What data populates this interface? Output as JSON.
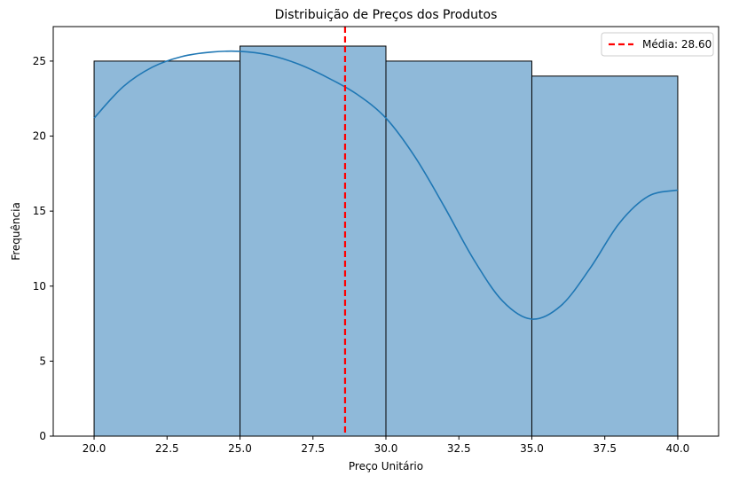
{
  "chart_data": {
    "type": "bar",
    "title": "Distribuição de Preços dos Produtos",
    "xlabel": "Preço Unitário",
    "ylabel": "Frequência",
    "xlim": [
      18.6,
      41.4
    ],
    "ylim": [
      0,
      27.3
    ],
    "x_ticks": [
      20.0,
      22.5,
      25.0,
      27.5,
      30.0,
      32.5,
      35.0,
      37.5,
      40.0
    ],
    "x_tick_labels": [
      "20.0",
      "22.5",
      "25.0",
      "27.5",
      "30.0",
      "32.5",
      "35.0",
      "37.5",
      "40.0"
    ],
    "y_ticks": [
      0,
      5,
      10,
      15,
      20,
      25
    ],
    "y_tick_labels": [
      "0",
      "5",
      "10",
      "15",
      "20",
      "25"
    ],
    "bins": [
      {
        "start": 20,
        "end": 25,
        "count": 25
      },
      {
        "start": 25,
        "end": 30,
        "count": 26
      },
      {
        "start": 30,
        "end": 35,
        "count": 25
      },
      {
        "start": 35,
        "end": 40,
        "count": 24
      }
    ],
    "kde": {
      "x": [
        20,
        21,
        22,
        23,
        24,
        25,
        26,
        27,
        28,
        29,
        30,
        31,
        32,
        33,
        34,
        35,
        36,
        37,
        38,
        39,
        40
      ],
      "y": [
        21.2,
        23.3,
        24.6,
        25.3,
        25.6,
        25.65,
        25.4,
        24.8,
        23.9,
        22.8,
        21.2,
        18.6,
        15.3,
        11.8,
        9.0,
        7.8,
        8.7,
        11.2,
        14.2,
        16.0,
        16.4
      ]
    },
    "mean_line": {
      "value": 28.6,
      "label": "Média: 28.60"
    },
    "colors": {
      "bar_fill": "#8fb9d9",
      "bar_edge": "#000000",
      "kde": "#1f77b4",
      "mean": "#ff0000"
    },
    "legend_position": "top-right",
    "grid": false
  }
}
